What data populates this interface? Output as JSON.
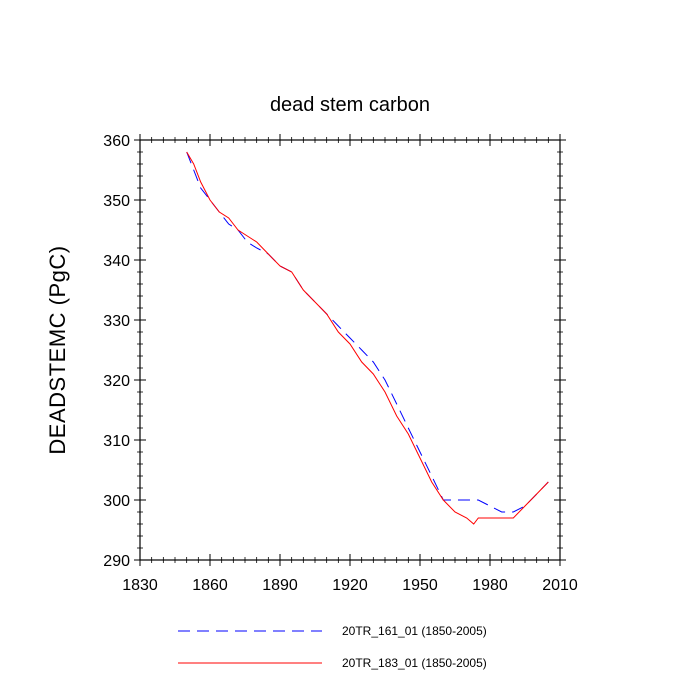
{
  "chart_data": {
    "type": "line",
    "title": "dead stem carbon",
    "xlabel": "",
    "ylabel": "DEADSTEMC  (PgC)",
    "xlim": [
      1830,
      2010
    ],
    "ylim": [
      290,
      360
    ],
    "xticks": [
      1830,
      1860,
      1890,
      1920,
      1950,
      1980,
      2010
    ],
    "yticks": [
      290,
      300,
      310,
      320,
      330,
      340,
      350,
      360
    ],
    "legend_position": "bottom",
    "series": [
      {
        "name": "20TR_161_01 (1850-2005)",
        "color": "#0000ff",
        "style": "dashed",
        "x": [
          1850,
          1853,
          1856,
          1860,
          1864,
          1868,
          1872,
          1876,
          1880,
          1885,
          1890,
          1895,
          1900,
          1905,
          1910,
          1915,
          1920,
          1925,
          1930,
          1935,
          1940,
          1945,
          1950,
          1955,
          1960,
          1965,
          1970,
          1975,
          1980,
          1985,
          1990,
          1995,
          2000,
          2005
        ],
        "y": [
          358,
          355,
          352,
          350,
          348,
          346,
          345,
          343,
          342,
          341,
          339,
          338,
          335,
          333,
          331,
          329,
          327,
          325,
          323,
          320,
          316,
          312,
          308,
          304,
          300,
          300,
          300,
          300,
          299,
          298,
          298,
          299,
          301,
          303
        ]
      },
      {
        "name": "20TR_183_01 (1850-2005)",
        "color": "#ff0000",
        "style": "solid",
        "x": [
          1850,
          1853,
          1856,
          1860,
          1864,
          1868,
          1872,
          1876,
          1880,
          1885,
          1890,
          1895,
          1900,
          1905,
          1910,
          1915,
          1920,
          1925,
          1930,
          1935,
          1940,
          1945,
          1950,
          1955,
          1960,
          1965,
          1970,
          1973,
          1975,
          1980,
          1985,
          1990,
          1995,
          2000,
          2005
        ],
        "y": [
          358,
          356,
          353,
          350,
          348,
          347,
          345,
          344,
          343,
          341,
          339,
          338,
          335,
          333,
          331,
          328,
          326,
          323,
          321,
          318,
          314,
          311,
          307,
          303,
          300,
          298,
          297,
          296,
          297,
          297,
          297,
          297,
          299,
          301,
          303
        ]
      }
    ]
  }
}
